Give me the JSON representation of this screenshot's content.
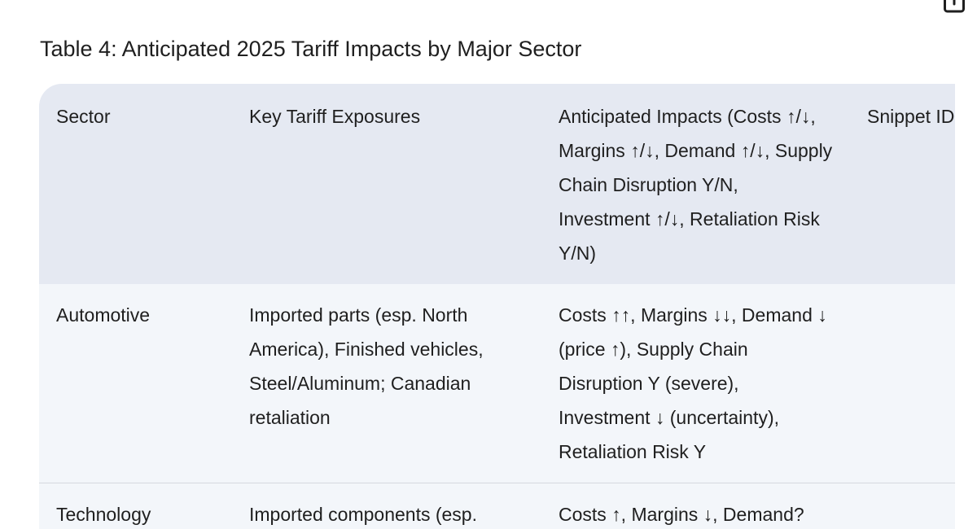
{
  "title": "Table 4: Anticipated 2025 Tariff Impacts by Major Sector",
  "icons": {
    "share": "share-icon"
  },
  "table": {
    "headers": [
      "Sector",
      "Key Tariff Exposures",
      "Anticipated Impacts (Costs ↑/↓, Margins ↑/↓, Demand ↑/↓, Supply Chain Disruption Y/N, Investment ↑/↓, Retaliation Risk Y/N)",
      "Snippet IDs"
    ],
    "rows": [
      {
        "sector": "Automotive",
        "exposures": "Imported parts (esp. North America), Finished vehicles, Steel/Aluminum; Canadian retaliation",
        "impacts": "Costs ↑↑, Margins ↓↓, Demand ↓ (price ↑), Supply Chain Disruption Y (severe), Investment ↓ (uncertainty), Retaliation Risk Y",
        "snippet": ""
      },
      {
        "sector": "Technology",
        "exposures": "Imported components (esp.",
        "impacts": "Costs ↑, Margins ↓, Demand?",
        "snippet": ""
      }
    ]
  },
  "colors": {
    "header_bg": "#e5e9f2",
    "row_bg": "#f3f6fa",
    "divider": "#d6d9de",
    "text": "#1f1f1f"
  }
}
